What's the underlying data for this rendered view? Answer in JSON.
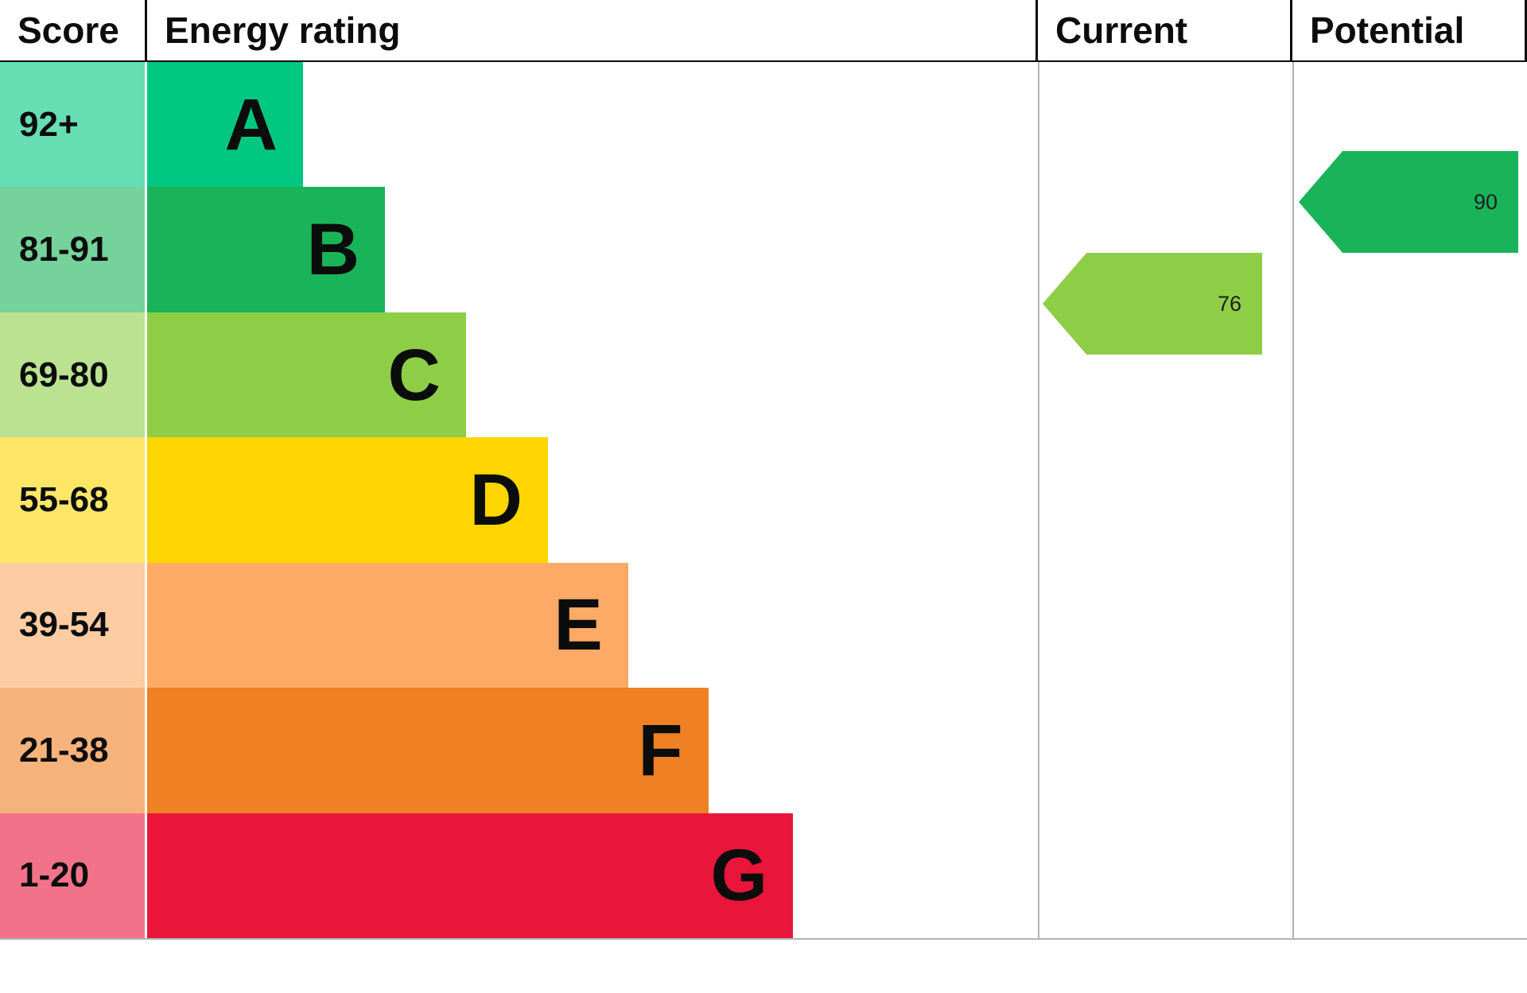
{
  "header": {
    "score_label": "Score",
    "energy_rating_label": "Energy rating",
    "current_label": "Current",
    "potential_label": "Potential"
  },
  "chart_data": {
    "type": "bar",
    "subtype": "epc-energy-rating",
    "title": "Energy rating",
    "columns": [
      "Score",
      "Energy rating",
      "Current",
      "Potential"
    ],
    "bands": [
      {
        "score": "92+",
        "letter": "A",
        "color": "#00c781",
        "tint": "#66ddb3",
        "width_pct": 17.5
      },
      {
        "score": "81-91",
        "letter": "B",
        "color": "#19b459",
        "tint": "#75d29b",
        "width_pct": 26.7
      },
      {
        "score": "69-80",
        "letter": "C",
        "color": "#8dce46",
        "tint": "#bbe290",
        "width_pct": 35.8
      },
      {
        "score": "55-68",
        "letter": "D",
        "color": "#ffd500",
        "tint": "#ffe666",
        "width_pct": 45.0
      },
      {
        "score": "39-54",
        "letter": "E",
        "color": "#fcaa65",
        "tint": "#fdcca3",
        "width_pct": 54.0
      },
      {
        "score": "21-38",
        "letter": "F",
        "color": "#ef8023",
        "tint": "#f5b37b",
        "width_pct": 63.0
      },
      {
        "score": "1-20",
        "letter": "G",
        "color": "#e9153b",
        "tint": "#f27389",
        "width_pct": 72.5
      }
    ],
    "current": {
      "value": 76,
      "band": "C",
      "color": "#8dce46"
    },
    "potential": {
      "value": 90,
      "band": "B",
      "color": "#19b459"
    }
  }
}
